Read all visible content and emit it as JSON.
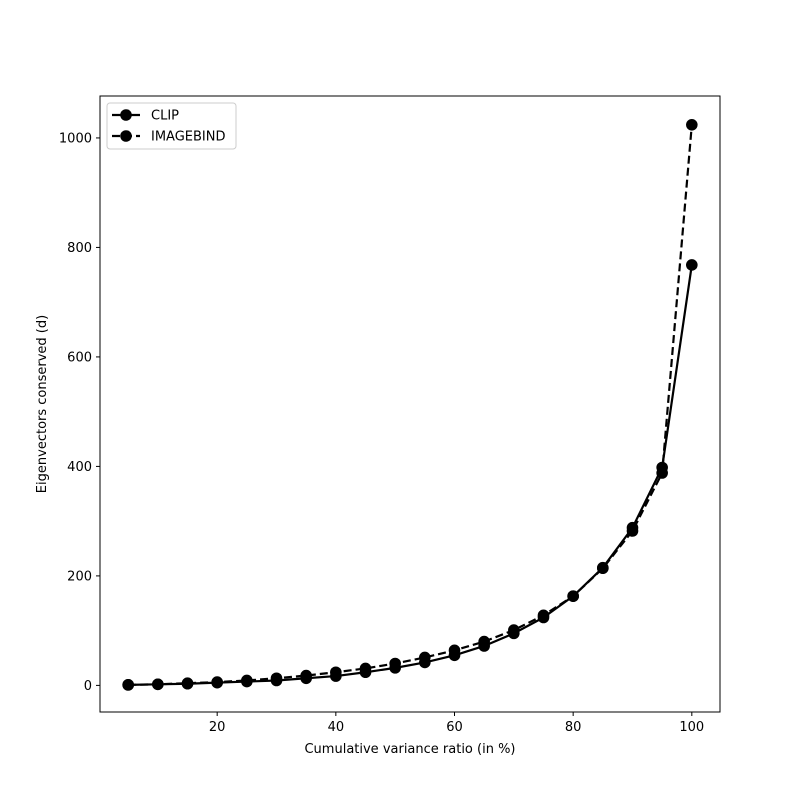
{
  "chart_data": {
    "type": "line",
    "title": "",
    "xlabel": "Cumulative variance ratio (in %)",
    "ylabel": "Eigenvectors conserved (d)",
    "xlim": [
      0.25,
      104.75
    ],
    "ylim": [
      -48.6,
      1076.6
    ],
    "x_ticks": [
      20,
      40,
      60,
      80,
      100
    ],
    "y_ticks": [
      0,
      200,
      400,
      600,
      800,
      1000
    ],
    "grid": false,
    "legend_position": "top-left",
    "x": [
      5,
      10,
      15,
      20,
      25,
      30,
      35,
      40,
      45,
      50,
      55,
      60,
      65,
      70,
      75,
      80,
      85,
      90,
      95,
      100
    ],
    "series": [
      {
        "name": "CLIP",
        "line_style": "solid",
        "color": "#000000",
        "values": [
          1,
          2,
          3,
          5,
          7,
          9,
          13,
          17,
          24,
          32,
          42,
          55,
          72,
          95,
          124,
          163,
          215,
          288,
          398,
          768
        ]
      },
      {
        "name": "IMAGEBIND",
        "line_style": "dashed",
        "color": "#000000",
        "values": [
          1,
          2,
          4,
          6,
          9,
          13,
          18,
          24,
          31,
          40,
          51,
          64,
          80,
          101,
          128,
          163,
          214,
          282,
          388,
          1024
        ]
      }
    ]
  }
}
